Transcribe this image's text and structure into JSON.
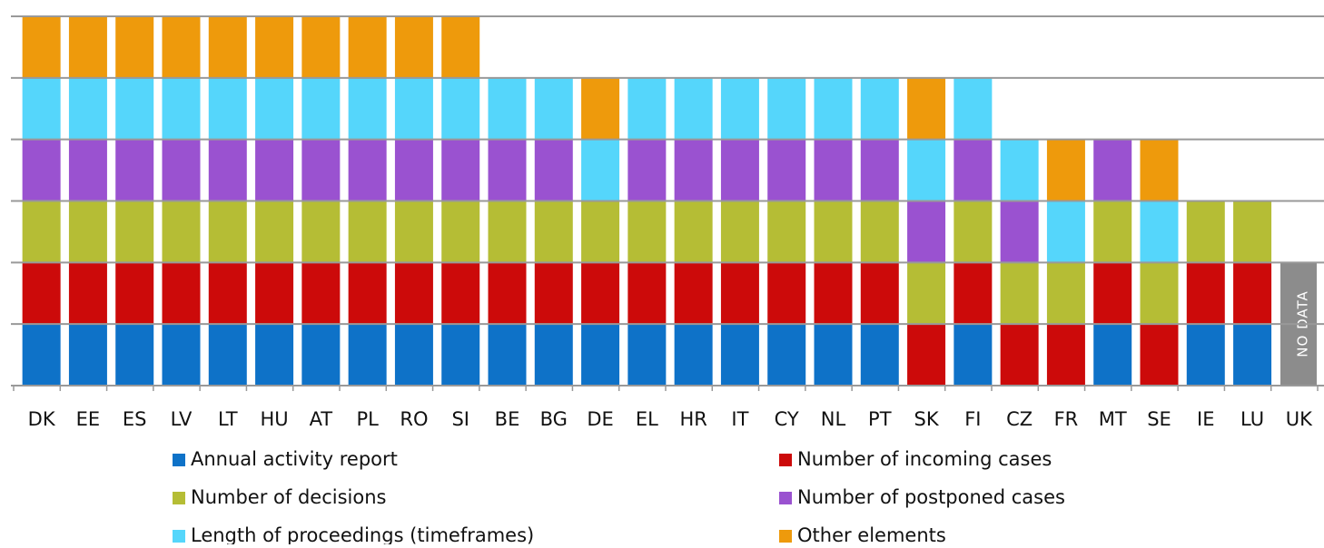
{
  "chart_data": {
    "type": "stacked_bar",
    "categories": [
      "DK",
      "EE",
      "ES",
      "LV",
      "LT",
      "HU",
      "AT",
      "PL",
      "RO",
      "SI",
      "BE",
      "BG",
      "DE",
      "EL",
      "HR",
      "IT",
      "CY",
      "NL",
      "PT",
      "SK",
      "FI",
      "CZ",
      "FR",
      "MT",
      "SE",
      "IE",
      "LU",
      "UK"
    ],
    "series": [
      {
        "name": "Annual activity report",
        "color": "#0e72c8",
        "values": [
          1,
          1,
          1,
          1,
          1,
          1,
          1,
          1,
          1,
          1,
          1,
          1,
          1,
          1,
          1,
          1,
          1,
          1,
          1,
          0,
          1,
          0,
          0,
          1,
          0,
          1,
          1,
          null
        ]
      },
      {
        "name": "Number of incoming cases",
        "color": "#cc0a0a",
        "values": [
          1,
          1,
          1,
          1,
          1,
          1,
          1,
          1,
          1,
          1,
          1,
          1,
          1,
          1,
          1,
          1,
          1,
          1,
          1,
          1,
          1,
          1,
          1,
          1,
          1,
          1,
          1,
          null
        ]
      },
      {
        "name": "Number of decisions",
        "color": "#b5bd35",
        "values": [
          1,
          1,
          1,
          1,
          1,
          1,
          1,
          1,
          1,
          1,
          1,
          1,
          1,
          1,
          1,
          1,
          1,
          1,
          1,
          1,
          1,
          1,
          1,
          1,
          1,
          1,
          1,
          null
        ]
      },
      {
        "name": "Number of postponed cases",
        "color": "#9a52d0",
        "values": [
          1,
          1,
          1,
          1,
          1,
          1,
          1,
          1,
          1,
          1,
          1,
          1,
          0,
          1,
          1,
          1,
          1,
          1,
          1,
          1,
          1,
          1,
          0,
          1,
          0,
          0,
          0,
          null
        ]
      },
      {
        "name": "Length of proceedings (timeframes)",
        "color": "#55d6fb",
        "values": [
          1,
          1,
          1,
          1,
          1,
          1,
          1,
          1,
          1,
          1,
          1,
          1,
          1,
          1,
          1,
          1,
          1,
          1,
          1,
          1,
          1,
          1,
          1,
          0,
          1,
          0,
          0,
          null
        ]
      },
      {
        "name": "Other elements",
        "color": "#ee9a0c",
        "values": [
          1,
          1,
          1,
          1,
          1,
          1,
          1,
          1,
          1,
          1,
          0,
          0,
          1,
          0,
          0,
          0,
          0,
          0,
          0,
          1,
          0,
          0,
          1,
          0,
          1,
          0,
          0,
          null
        ]
      }
    ],
    "ylim": [
      0,
      6
    ],
    "yticks": [
      0,
      1,
      2,
      3,
      4,
      5,
      6
    ],
    "grid": true,
    "no_data_label": "NO DATA"
  }
}
